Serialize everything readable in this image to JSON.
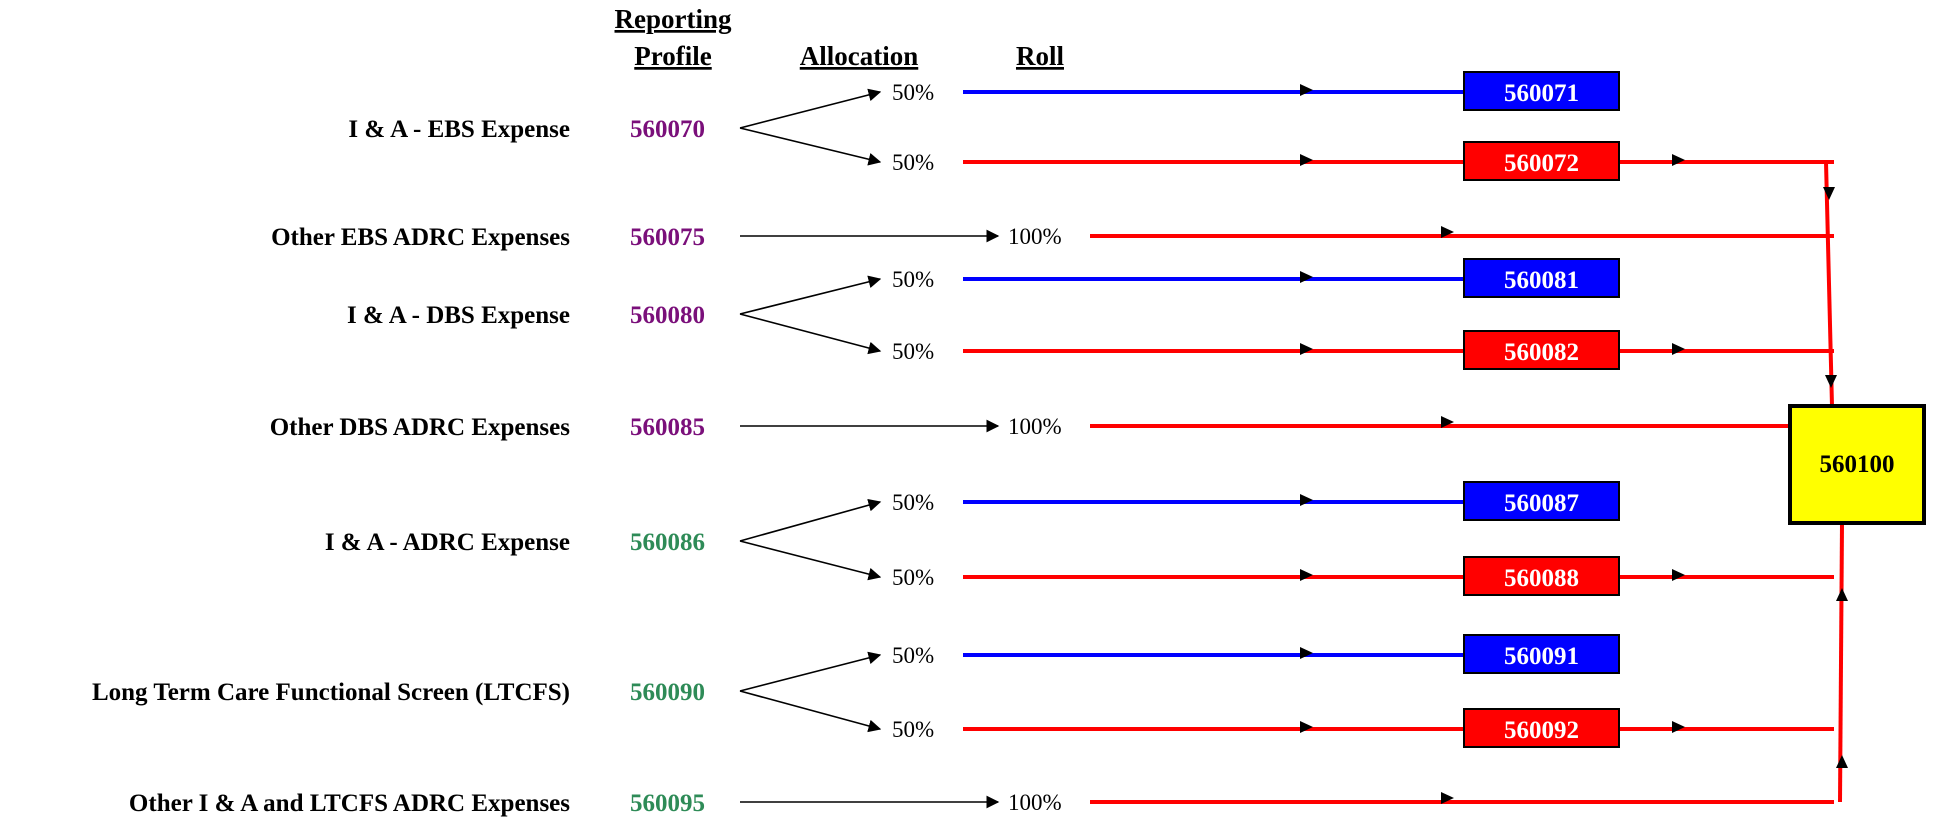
{
  "headers": {
    "reporting": "Reporting",
    "profile": "Profile",
    "allocation": "Allocation",
    "roll": "Roll"
  },
  "colors": {
    "purple": "#7a0f7a",
    "green": "#2e8b57",
    "blue": "#0000ff",
    "red": "#ff0000",
    "yellow": "#ffff00"
  },
  "rows": [
    {
      "label": "I & A   -   EBS Expense",
      "code": "560070",
      "code_color": "purple",
      "targets": [
        {
          "pct": "50%",
          "code": "560071",
          "color": "blue"
        },
        {
          "pct": "50%",
          "code": "560072",
          "color": "red"
        }
      ]
    },
    {
      "label": "Other EBS ADRC Expenses",
      "code": "560075",
      "code_color": "purple",
      "direct": {
        "pct": "100%"
      }
    },
    {
      "label": "I & A  -  DBS Expense",
      "code": "560080",
      "code_color": "purple",
      "targets": [
        {
          "pct": "50%",
          "code": "560081",
          "color": "blue"
        },
        {
          "pct": "50%",
          "code": "560082",
          "color": "red"
        }
      ]
    },
    {
      "label": "Other DBS ADRC Expenses",
      "code": "560085",
      "code_color": "purple",
      "direct": {
        "pct": "100%"
      }
    },
    {
      "label": "I & A  -  ADRC Expense",
      "code": "560086",
      "code_color": "green",
      "targets": [
        {
          "pct": "50%",
          "code": "560087",
          "color": "blue"
        },
        {
          "pct": "50%",
          "code": "560088",
          "color": "red"
        }
      ]
    },
    {
      "label": "Long Term Care Functional Screen (LTCFS)",
      "code": "560090",
      "code_color": "green",
      "targets": [
        {
          "pct": "50%",
          "code": "560091",
          "color": "blue"
        },
        {
          "pct": "50%",
          "code": "560092",
          "color": "red"
        }
      ]
    },
    {
      "label": "Other I & A and LTCFS ADRC Expenses",
      "code": "560095",
      "code_color": "green",
      "direct": {
        "pct": "100%"
      }
    }
  ],
  "final": {
    "code": "560100"
  }
}
